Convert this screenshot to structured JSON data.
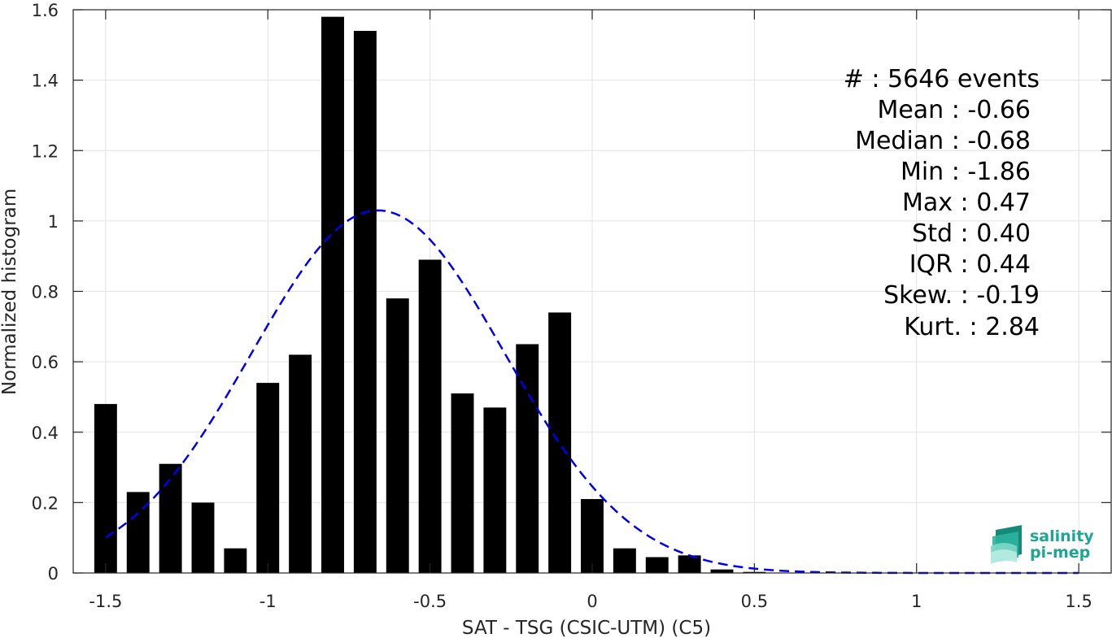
{
  "chart_data": {
    "type": "bar",
    "xlabel": "SAT - TSG (CSIC-UTM) (C5)",
    "ylabel": "Normalized histogram",
    "xlim": [
      -1.6,
      1.6
    ],
    "ylim": [
      0,
      1.6
    ],
    "xticks": [
      -1.5,
      -1,
      -0.5,
      0,
      0.5,
      1,
      1.5
    ],
    "xtick_labels": [
      "-1.5",
      "-1",
      "-0.5",
      "0",
      "0.5",
      "1",
      "1.5"
    ],
    "yticks": [
      0,
      0.2,
      0.4,
      0.6,
      0.8,
      1,
      1.2,
      1.4,
      1.6
    ],
    "ytick_labels": [
      "0",
      "0.2",
      "0.4",
      "0.6",
      "0.8",
      "1",
      "1.2",
      "1.4",
      "1.6"
    ],
    "grid": true,
    "bar_width": 0.07,
    "bar_color": "#000000",
    "fit_color": "#0000ee",
    "bins": [
      {
        "x": -1.5,
        "y": 0.48
      },
      {
        "x": -1.4,
        "y": 0.23
      },
      {
        "x": -1.3,
        "y": 0.31
      },
      {
        "x": -1.2,
        "y": 0.2
      },
      {
        "x": -1.1,
        "y": 0.07
      },
      {
        "x": -1.0,
        "y": 0.54
      },
      {
        "x": -0.9,
        "y": 0.62
      },
      {
        "x": -0.8,
        "y": 1.58
      },
      {
        "x": -0.7,
        "y": 1.54
      },
      {
        "x": -0.6,
        "y": 0.78
      },
      {
        "x": -0.5,
        "y": 0.89
      },
      {
        "x": -0.4,
        "y": 0.51
      },
      {
        "x": -0.3,
        "y": 0.47
      },
      {
        "x": -0.2,
        "y": 0.65
      },
      {
        "x": -0.1,
        "y": 0.74
      },
      {
        "x": 0.0,
        "y": 0.21
      },
      {
        "x": 0.1,
        "y": 0.07
      },
      {
        "x": 0.2,
        "y": 0.045
      },
      {
        "x": 0.3,
        "y": 0.05
      },
      {
        "x": 0.4,
        "y": 0.01
      },
      {
        "x": 0.5,
        "y": 0.003
      }
    ],
    "fit_mean": -0.66,
    "fit_std": 0.39,
    "fit_peak": 1.03,
    "fit_range": [
      -1.5,
      1.5
    ]
  },
  "stats": [
    "#  : 5646 events",
    "Mean : -0.66",
    "Median : -0.68",
    "Min : -1.86",
    "Max : 0.47",
    "Std : 0.40",
    "IQR : 0.44",
    "Skew. : -0.19",
    "Kurt. : 2.84"
  ],
  "logo": {
    "line1": "salinity",
    "line2": "pi-mep"
  }
}
